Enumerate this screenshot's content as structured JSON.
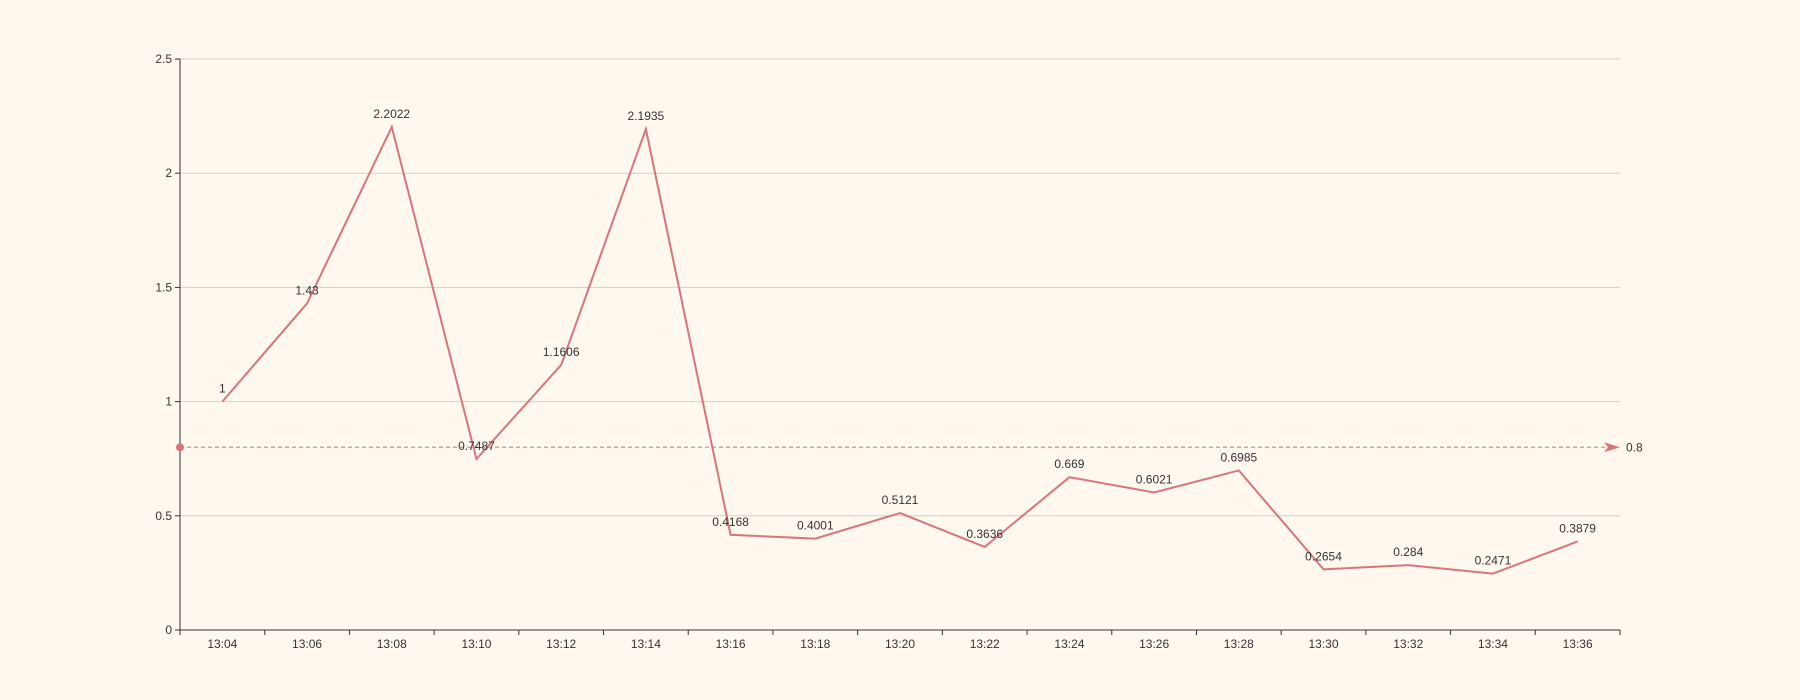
{
  "chart_data": {
    "type": "line",
    "title": "",
    "xlabel": "",
    "ylabel": "",
    "categories": [
      "13:04",
      "13:06",
      "13:08",
      "13:10",
      "13:12",
      "13:14",
      "13:16",
      "13:18",
      "13:20",
      "13:22",
      "13:24",
      "13:26",
      "13:28",
      "13:30",
      "13:32",
      "13:34",
      "13:36"
    ],
    "series": [
      {
        "values": [
          1,
          1.43,
          2.2022,
          0.7487,
          1.1606,
          2.1935,
          0.4168,
          0.4001,
          0.5121,
          0.3636,
          0.669,
          0.6021,
          0.6985,
          0.2654,
          0.284,
          0.2471,
          0.3879
        ],
        "labels": [
          "1",
          "1.43",
          "2.2022",
          "0.7487",
          "1.1606",
          "2.1935",
          "0.4168",
          "0.4001",
          "0.5121",
          "0.3636",
          "0.669",
          "0.6021",
          "0.6985",
          "0.2654",
          "0.284",
          "0.2471",
          "0.3879"
        ],
        "color": "#d9747a"
      }
    ],
    "ylim": [
      0,
      2.5
    ],
    "yticks": [
      0,
      0.5,
      1,
      1.5,
      2,
      2.5
    ],
    "ytick_labels": [
      "0",
      "0.5",
      "1",
      "1.5",
      "2",
      "2.5"
    ],
    "grid": true,
    "mark_line": {
      "value": 0.8,
      "label": "0.8",
      "style": "dashed",
      "color": "#d9747a"
    },
    "colors": {
      "background": "#fef8ef",
      "grid": "#cfd3cc",
      "axis": "#333333"
    }
  }
}
